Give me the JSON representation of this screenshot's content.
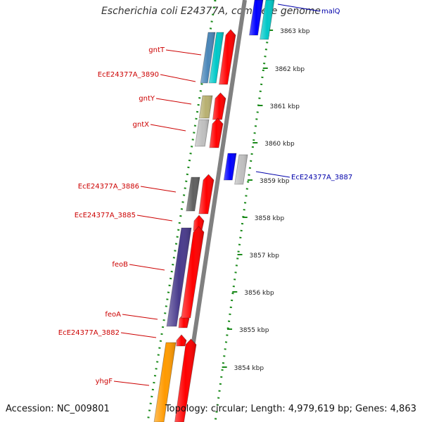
{
  "title": "Escherichia coli E24377A, complete genome",
  "footer": {
    "accession": "Accession: NC_009801",
    "summary": "Topology: circular; Length: 4,979,619 bp; Genes: 4,863"
  },
  "colors": {
    "dotted_track": "#1a8a1a",
    "backbone": "#808080",
    "left_label": "#cc0000",
    "right_label": "#0000aa",
    "red_strand": "#ff0000"
  },
  "kbp_ticks": [
    {
      "label": "3863 kbp"
    },
    {
      "label": "3862 kbp"
    },
    {
      "label": "3861 kbp"
    },
    {
      "label": "3860 kbp"
    },
    {
      "label": "3859 kbp"
    },
    {
      "label": "3858 kbp"
    },
    {
      "label": "3857 kbp"
    },
    {
      "label": "3856 kbp"
    },
    {
      "label": "3855 kbp"
    },
    {
      "label": "3854 kbp"
    }
  ],
  "left_genes": [
    {
      "label": "gntT",
      "color": "#4a86b8"
    },
    {
      "label": "EcE24377A_3890",
      "color": "#00c8c8"
    },
    {
      "label": "gntY",
      "color": "#b8b070"
    },
    {
      "label": "gntX",
      "color": "#c0c0c0"
    },
    {
      "label": "EcE24377A_3886",
      "color": "#606060"
    },
    {
      "label": "EcE24377A_3885",
      "color": "#ff0000"
    },
    {
      "label": "feoB",
      "color": "#483a8c"
    },
    {
      "label": "feoA",
      "color": "#ff0000"
    },
    {
      "label": "EcE24377A_3882",
      "color": "#ff0000"
    },
    {
      "label": "yhgF",
      "color": "#ff9a00"
    }
  ],
  "right_genes": [
    {
      "label": "malQ",
      "color": "#0000ff"
    },
    {
      "label": "EcE24377A_3887",
      "color": "#0000ff"
    }
  ]
}
